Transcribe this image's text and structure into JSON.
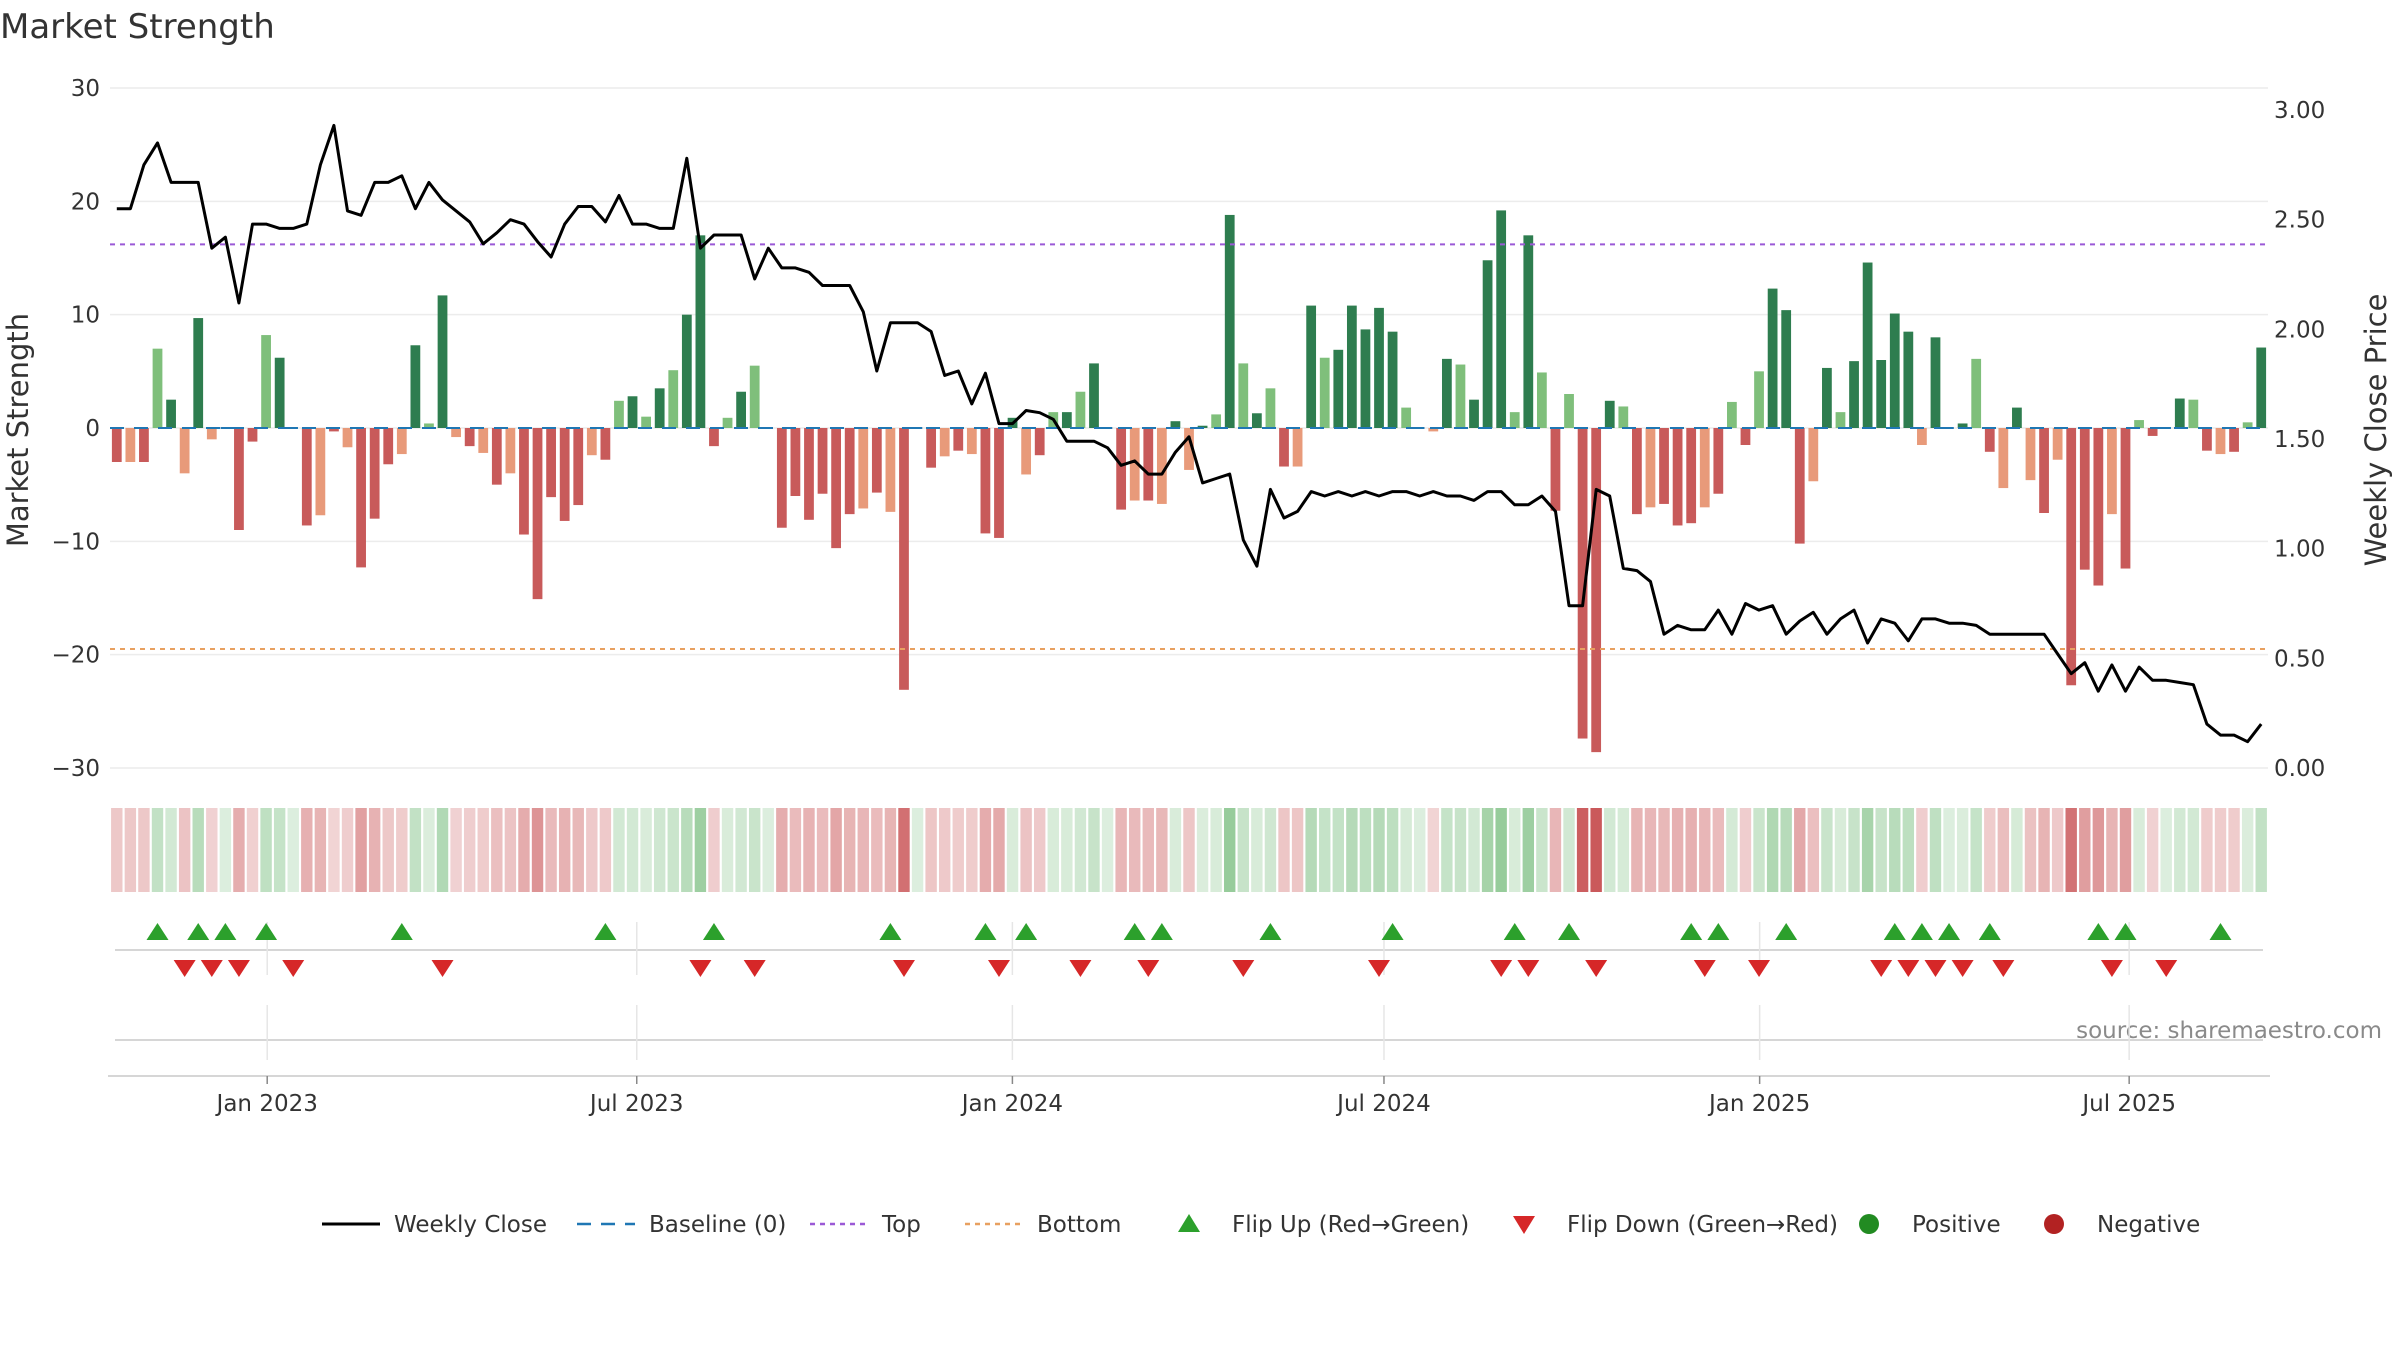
{
  "chart_data": {
    "type": "bar",
    "title": "Market Strength",
    "ylabel_left": "Market Strength",
    "ylabel_right": "Weekly Close Price",
    "source": "source: sharemaestro.com",
    "ylim_left": [
      -30,
      30
    ],
    "yticks_left": [
      30,
      20,
      10,
      0,
      -10,
      -20,
      -30
    ],
    "yticks_left_labels": [
      "30",
      "20",
      "10",
      "0",
      "−10",
      "−20",
      "−30"
    ],
    "ylim_right": [
      0,
      3.1
    ],
    "yticks_right": [
      3.0,
      2.5,
      2.0,
      1.5,
      1.0,
      0.5,
      0.0
    ],
    "yticks_right_labels": [
      "3.00",
      "2.50",
      "2.00",
      "1.50",
      "1.00",
      "0.50",
      "0.00"
    ],
    "top_threshold": 16.2,
    "bottom_threshold": -19.5,
    "x_start": "2022-10-16",
    "x_end": "2025-09-07",
    "x_ticks": [
      {
        "date": "2023-01-01",
        "label": "Jan 2023"
      },
      {
        "date": "2023-07-01",
        "label": "Jul 2023"
      },
      {
        "date": "2024-01-01",
        "label": "Jan 2024"
      },
      {
        "date": "2024-07-01",
        "label": "Jul 2024"
      },
      {
        "date": "2025-01-01",
        "label": "Jan 2025"
      },
      {
        "date": "2025-07-01",
        "label": "Jul 2025"
      }
    ],
    "strength": [
      -3.0,
      -3.0,
      -3.0,
      7.0,
      2.5,
      -4.0,
      9.7,
      -1.0,
      0,
      -9.0,
      -1.2,
      8.2,
      6.2,
      0,
      -8.6,
      -7.7,
      -0.3,
      -1.7,
      -12.3,
      -8.0,
      -3.2,
      -2.3,
      7.3,
      0.4,
      11.7,
      -0.8,
      -1.6,
      -2.2,
      -5.0,
      -4.0,
      -9.4,
      -15.1,
      -6.1,
      -8.2,
      -6.8,
      -2.4,
      -2.8,
      2.4,
      2.8,
      1.0,
      3.5,
      5.1,
      10.0,
      17.0,
      -1.6,
      0.9,
      3.2,
      5.5,
      0,
      -8.8,
      -6.0,
      -8.1,
      -5.8,
      -10.6,
      -7.6,
      -7.1,
      -5.7,
      -7.4,
      -23.1,
      0,
      -3.5,
      -2.5,
      -2.0,
      -2.3,
      -9.3,
      -9.7,
      0.9,
      -4.1,
      -2.4,
      1.4,
      1.4,
      3.2,
      5.7,
      0,
      -7.2,
      -6.4,
      -6.4,
      -6.7,
      0.6,
      -3.7,
      0.2,
      1.2,
      18.8,
      5.7,
      1.3,
      3.5,
      -3.4,
      -3.4,
      10.8,
      6.2,
      6.9,
      10.8,
      8.7,
      10.6,
      8.5,
      1.8,
      0,
      -0.3,
      6.1,
      5.6,
      2.5,
      14.8,
      19.2,
      1.4,
      17.0,
      4.9,
      -7.3,
      3.0,
      -27.4,
      -28.6,
      2.4,
      1.9,
      -7.6,
      -7.0,
      -6.7,
      -8.6,
      -8.4,
      -7.0,
      -5.8,
      2.3,
      -1.5,
      5.0,
      12.3,
      10.4,
      -10.2,
      -4.7,
      5.3,
      1.4,
      5.9,
      14.6,
      6.0,
      10.1,
      8.5,
      -1.5,
      8.0,
      0,
      0.4,
      6.1,
      -2.1,
      -5.3,
      1.8,
      -4.6,
      -7.5,
      -2.8,
      -22.7,
      -12.5,
      -13.9,
      -7.6,
      -12.4,
      0.7,
      -0.7,
      0,
      2.6,
      2.5,
      -2.0,
      -2.3,
      -2.1,
      0.5,
      7.1
    ],
    "weekly_close": [
      2.55,
      2.55,
      2.75,
      2.85,
      2.67,
      2.67,
      2.67,
      2.37,
      2.42,
      2.12,
      2.48,
      2.48,
      2.46,
      2.46,
      2.48,
      2.75,
      2.93,
      2.54,
      2.52,
      2.67,
      2.67,
      2.7,
      2.55,
      2.67,
      2.59,
      2.54,
      2.49,
      2.39,
      2.44,
      2.5,
      2.48,
      2.4,
      2.33,
      2.48,
      2.56,
      2.56,
      2.49,
      2.61,
      2.48,
      2.48,
      2.46,
      2.46,
      2.78,
      2.37,
      2.43,
      2.43,
      2.43,
      2.23,
      2.37,
      2.28,
      2.28,
      2.26,
      2.2,
      2.2,
      2.2,
      2.08,
      1.81,
      2.03,
      2.03,
      2.03,
      1.99,
      1.79,
      1.81,
      1.66,
      1.8,
      1.57,
      1.57,
      1.63,
      1.62,
      1.59,
      1.49,
      1.49,
      1.49,
      1.46,
      1.38,
      1.4,
      1.34,
      1.34,
      1.44,
      1.51,
      1.3,
      1.32,
      1.34,
      1.04,
      0.92,
      1.27,
      1.14,
      1.17,
      1.26,
      1.24,
      1.26,
      1.24,
      1.26,
      1.24,
      1.26,
      1.26,
      1.24,
      1.26,
      1.24,
      1.24,
      1.22,
      1.26,
      1.26,
      1.2,
      1.2,
      1.24,
      1.17,
      0.74,
      0.74,
      1.27,
      1.24,
      0.91,
      0.9,
      0.85,
      0.61,
      0.65,
      0.63,
      0.63,
      0.72,
      0.61,
      0.75,
      0.72,
      0.74,
      0.61,
      0.67,
      0.71,
      0.61,
      0.68,
      0.72,
      0.57,
      0.68,
      0.66,
      0.58,
      0.68,
      0.68,
      0.66,
      0.66,
      0.65,
      0.61,
      0.61,
      0.61,
      0.61,
      0.61,
      0.52,
      0.43,
      0.48,
      0.35,
      0.47,
      0.35,
      0.46,
      0.4,
      0.4,
      0.39,
      0.38,
      0.2,
      0.15,
      0.15,
      0.12,
      0.2
    ],
    "flip_up_weeks": [
      3,
      6,
      8,
      11,
      21,
      36,
      44,
      57,
      64,
      67,
      75,
      77,
      85,
      94,
      103,
      107,
      116,
      118,
      123,
      131,
      133,
      135,
      138,
      146,
      148,
      155
    ],
    "flip_down_weeks": [
      5,
      7,
      9,
      13,
      24,
      43,
      47,
      58,
      65,
      71,
      76,
      83,
      93,
      102,
      104,
      109,
      117,
      121,
      130,
      132,
      134,
      136,
      139,
      147,
      151
    ],
    "legend": [
      {
        "label": "Weekly Close",
        "kind": "line",
        "color": "#000000"
      },
      {
        "label": "Baseline (0)",
        "kind": "dashed",
        "color": "#1f77b4"
      },
      {
        "label": "Top",
        "kind": "dotted",
        "color": "#9b59d6"
      },
      {
        "label": "Bottom",
        "kind": "dotted",
        "color": "#e8a060"
      },
      {
        "label": "Flip Up (Red→Green)",
        "kind": "triangle-up",
        "color": "#2ca02c"
      },
      {
        "label": "Flip Down (Green→Red)",
        "kind": "triangle-down",
        "color": "#d62728"
      },
      {
        "label": "Positive",
        "kind": "dot",
        "color": "#228b22"
      },
      {
        "label": "Negative",
        "kind": "dot",
        "color": "#b22222"
      }
    ],
    "colors": {
      "pos_strong": "#2e7d4f",
      "pos_mild": "#7fbf7b",
      "neg_strong": "#c85a5a",
      "neg_mild": "#e89a7a",
      "baseline": "#1f77b4",
      "top": "#9b59d6",
      "bottom": "#e8a060",
      "flip_up": "#2ca02c",
      "flip_down": "#d62728",
      "close": "#000000"
    }
  }
}
